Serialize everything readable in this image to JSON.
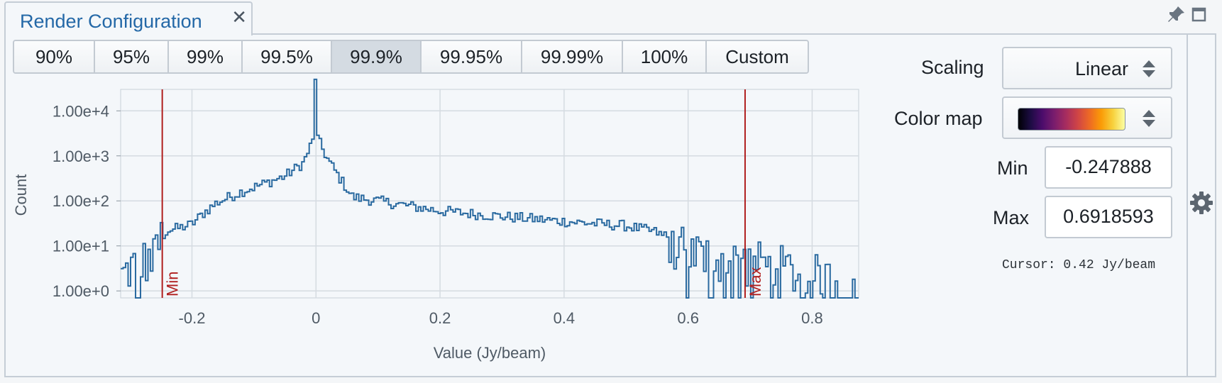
{
  "tab": {
    "title": "Render Configuration",
    "close": "✕"
  },
  "window": {
    "pin_icon": "pin-icon",
    "maximize_icon": "maximize-icon"
  },
  "percentiles": [
    "90%",
    "95%",
    "99%",
    "99.5%",
    "99.9%",
    "99.95%",
    "99.99%",
    "100%",
    "Custom"
  ],
  "percentile_selected": "99.9%",
  "controls": {
    "scaling_label": "Scaling",
    "scaling_value": "Linear",
    "colormap_label": "Color map",
    "min_label": "Min",
    "min_value": "-0.247888",
    "max_label": "Max",
    "max_value": "0.6918593",
    "cursor_text": "Cursor: 0.42 Jy/beam"
  },
  "settings_icon": "gear-icon",
  "chart_data": {
    "type": "histogram",
    "xlabel": "Value (Jy/beam)",
    "ylabel": "Count",
    "xlim": [
      -0.315,
      0.875
    ],
    "y_scale": "log",
    "ylim": [
      0.7,
      30000
    ],
    "x_ticks": [
      -0.2,
      0,
      0.2,
      0.4,
      0.6,
      0.8
    ],
    "x_tick_labels": [
      "-0.2",
      "0",
      "0.2",
      "0.4",
      "0.6",
      "0.8"
    ],
    "y_ticks": [
      1,
      10,
      100,
      1000,
      10000
    ],
    "y_tick_labels": [
      "1.00e+0",
      "1.00e+1",
      "1.00e+2",
      "1.00e+3",
      "1.00e+4"
    ],
    "grid": true,
    "markers": [
      {
        "label": "Min",
        "x": -0.247888,
        "color": "#b01e1e"
      },
      {
        "label": "Max",
        "x": 0.6918593,
        "color": "#b01e1e"
      }
    ],
    "series_color": "#2a6aa0",
    "envelope": [
      [
        -0.315,
        2
      ],
      [
        -0.29,
        4
      ],
      [
        -0.26,
        5
      ],
      [
        -0.25,
        14
      ],
      [
        -0.24,
        22
      ],
      [
        -0.22,
        25
      ],
      [
        -0.2,
        30
      ],
      [
        -0.18,
        55
      ],
      [
        -0.16,
        90
      ],
      [
        -0.12,
        160
      ],
      [
        -0.08,
        250
      ],
      [
        -0.05,
        350
      ],
      [
        -0.02,
        700
      ],
      [
        -0.01,
        1500
      ],
      [
        0,
        3000
      ],
      [
        0.01,
        1500
      ],
      [
        0.02,
        800
      ],
      [
        0.04,
        300
      ],
      [
        0.06,
        120
      ],
      [
        0.1,
        100
      ],
      [
        0.2,
        60
      ],
      [
        0.3,
        45
      ],
      [
        0.4,
        35
      ],
      [
        0.5,
        28
      ],
      [
        0.55,
        20
      ],
      [
        0.58,
        10
      ],
      [
        0.6,
        7
      ],
      [
        0.65,
        5
      ],
      [
        0.7,
        4
      ],
      [
        0.75,
        3
      ],
      [
        0.8,
        2
      ],
      [
        0.875,
        1
      ]
    ],
    "peak": {
      "x": 0,
      "count": 50000
    }
  }
}
